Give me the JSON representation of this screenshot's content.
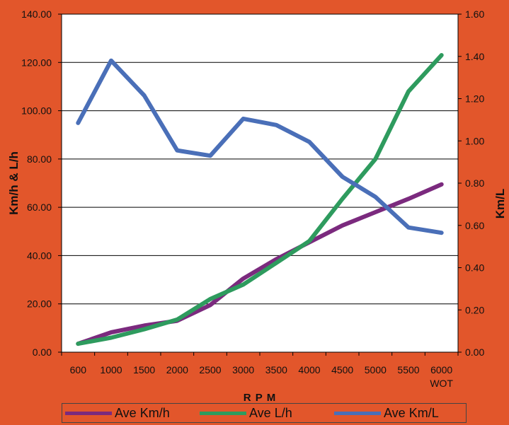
{
  "chart_data": {
    "type": "line",
    "categories": [
      "600",
      "1000",
      "1500",
      "2000",
      "2500",
      "3000",
      "3500",
      "4000",
      "4500",
      "5000",
      "5500",
      "6000"
    ],
    "category_sublabels": {
      "6000": "WOT"
    },
    "xlabel": "R P M",
    "ylabel_left": "Km/h & L/h",
    "ylabel_right": "Km/L",
    "ylim_left": [
      0,
      140
    ],
    "ylim_right": [
      0,
      1.6
    ],
    "yticks_left": [
      "0.00",
      "20.00",
      "40.00",
      "60.00",
      "80.00",
      "100.00",
      "120.00",
      "140.00"
    ],
    "yticks_right": [
      "0.00",
      "0.20",
      "0.40",
      "0.60",
      "0.80",
      "1.00",
      "1.20",
      "1.40",
      "1.60"
    ],
    "grid": true,
    "legend_position": "bottom",
    "series": [
      {
        "name": "Ave Km/h",
        "axis": "left",
        "color": "#7b2a7e",
        "values": [
          3.5,
          8.2,
          11.0,
          13.0,
          19.5,
          30.5,
          38.5,
          45.5,
          52.5,
          58.0,
          63.5,
          69.5
        ]
      },
      {
        "name": "Ave L/h",
        "axis": "left",
        "color": "#2e9b5e",
        "values": [
          3.5,
          6.0,
          9.5,
          13.5,
          22.0,
          28.0,
          37.0,
          46.0,
          63.5,
          80.0,
          108.0,
          123.0
        ]
      },
      {
        "name": "Ave Km/L",
        "axis": "right",
        "color": "#4a6fb8",
        "values": [
          1.085,
          1.38,
          1.215,
          0.955,
          0.93,
          1.105,
          1.075,
          0.995,
          0.83,
          0.735,
          0.59,
          0.565
        ]
      }
    ]
  }
}
